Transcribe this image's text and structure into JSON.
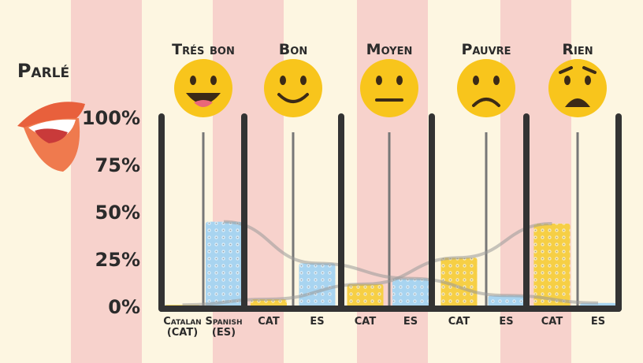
{
  "chart_data": {
    "type": "bar",
    "title": "Parlé",
    "categories": [
      "Trés bon",
      "Bon",
      "Moyen",
      "Pauvre",
      "Rien"
    ],
    "series": [
      {
        "name": "Catalan (CAT)",
        "short": "CAT",
        "color": "#f6cf45",
        "values": [
          2,
          5,
          13,
          27,
          45
        ]
      },
      {
        "name": "Spanish (ES)",
        "short": "ES",
        "color": "#a8d4f0",
        "values": [
          46,
          24,
          16,
          7,
          3
        ]
      }
    ],
    "ylim": [
      0,
      100
    ],
    "yticks": [
      {
        "value": 0,
        "label": "0%"
      },
      {
        "value": 25,
        "label": "25%"
      },
      {
        "value": 50,
        "label": "50%"
      },
      {
        "value": 75,
        "label": "75%"
      },
      {
        "value": 100,
        "label": "100%"
      }
    ]
  }
}
